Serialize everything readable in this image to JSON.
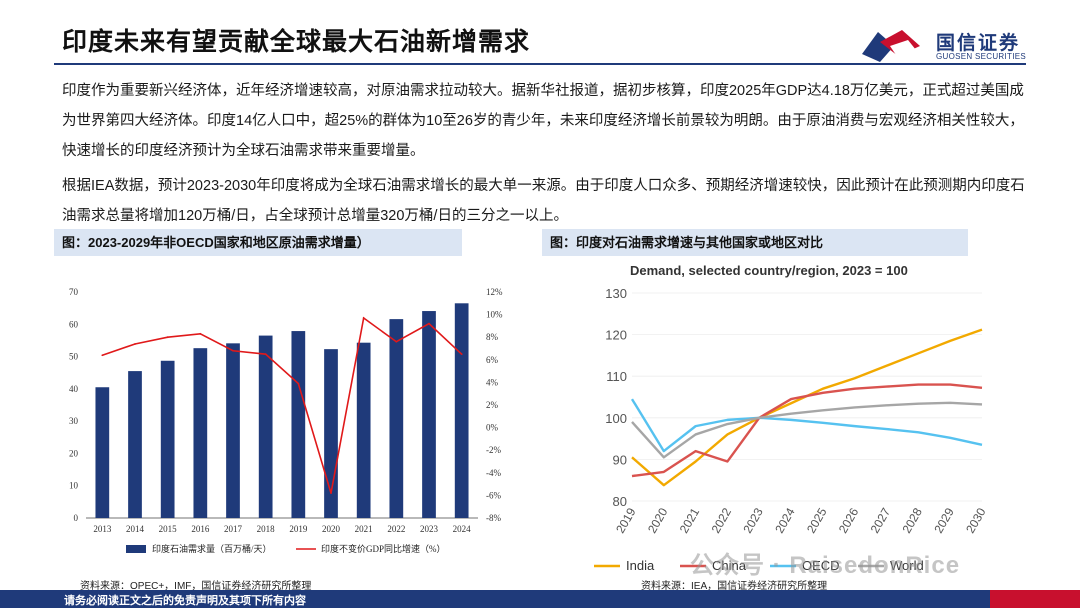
{
  "header": {
    "title": "印度未来有望贡献全球最大石油新增需求",
    "logo_cn": "国信证券",
    "logo_en": "GUOSEN SECURITIES"
  },
  "body": {
    "para1": "印度作为重要新兴经济体，近年经济增速较高，对原油需求拉动较大。据新华社报道，据初步核算，印度2025年GDP达4.18万亿美元，正式超过美国成为世界第四大经济体。印度14亿人口中，超25%的群体为10至26岁的青少年，未来印度经济增长前景较为明朗。由于原油消费与宏观经济相关性较大，快速增长的印度经济预计为全球石油需求带来重要增量。",
    "para2": "根据IEA数据，预计2023-2030年印度将成为全球石油需求增长的最大单一来源。由于印度人口众多、预期经济增速较快，因此预计在此预测期内印度石油需求总量将增加120万桶/日，占全球预计总增量320万桶/日的三分之一以上。"
  },
  "figure1": {
    "caption": "图：2023-2029年非OECD国家和地区原油需求增量）",
    "source": "资料来源：OPEC+，IMF，国信证券经济研究所整理"
  },
  "figure2": {
    "caption": "图：印度对石油需求增速与其他国家或地区对比",
    "source": "资料来源：IEA，国信证券经济研究所整理"
  },
  "footer": {
    "disclaimer": "请务必阅读正文之后的免责声明及其项下所有内容"
  },
  "watermark": "公众号 · RaisedonRice",
  "colors": {
    "bar": "#1f3a7a",
    "gdp_line": "#e0191a",
    "india": "#f2a900",
    "china": "#d9534f",
    "oecd": "#56c2f0",
    "world": "#a6a6a6"
  },
  "chart_data": [
    {
      "type": "bar",
      "categories": [
        "2013",
        "2014",
        "2015",
        "2016",
        "2017",
        "2018",
        "2019",
        "2020",
        "2021",
        "2022",
        "2023",
        "2024"
      ],
      "series": [
        {
          "name": "印度石油需求量（百万桶/天）",
          "type": "bar",
          "axis": "left",
          "values": [
            40.5,
            45.5,
            48.7,
            52.6,
            54.1,
            56.5,
            57.9,
            52.3,
            54.3,
            61.6,
            64.1,
            66.5
          ]
        },
        {
          "name": "印度不变价GDP同比增速（%）",
          "type": "line",
          "axis": "right",
          "values": [
            6.4,
            7.4,
            8.0,
            8.3,
            6.8,
            6.5,
            3.9,
            -5.8,
            9.7,
            7.6,
            9.2,
            6.5
          ]
        }
      ],
      "ylim_left": [
        0,
        70
      ],
      "yticks_left": [
        "0",
        "10",
        "20",
        "30",
        "40",
        "50",
        "60",
        "70"
      ],
      "ylim_right": [
        -8,
        12
      ],
      "yticks_right": [
        "-8%",
        "-6%",
        "-4%",
        "-2%",
        "0%",
        "2%",
        "4%",
        "6%",
        "8%",
        "10%",
        "12%"
      ],
      "legend": [
        "印度石油需求量（百万桶/天）",
        "印度不变价GDP同比增速（%）"
      ]
    },
    {
      "type": "line",
      "title": "Demand, selected country/region, 2023 = 100",
      "x": [
        "2019",
        "2020",
        "2021",
        "2022",
        "2023",
        "2024",
        "2025",
        "2026",
        "2027",
        "2028",
        "2029",
        "2030"
      ],
      "series": [
        {
          "name": "India",
          "values": [
            90.5,
            83.8,
            89.5,
            96.0,
            100.0,
            103.5,
            107.0,
            109.5,
            112.5,
            115.5,
            118.5,
            121.2
          ]
        },
        {
          "name": "China",
          "values": [
            86.0,
            87.0,
            92.0,
            89.5,
            100.0,
            104.5,
            106.0,
            107.0,
            107.5,
            108.0,
            108.0,
            107.2
          ]
        },
        {
          "name": "OECD",
          "values": [
            104.5,
            92.0,
            98.0,
            99.5,
            100.0,
            99.5,
            98.8,
            98.0,
            97.3,
            96.5,
            95.2,
            93.5
          ]
        },
        {
          "name": "World",
          "values": [
            99.0,
            90.5,
            96.0,
            98.5,
            100.0,
            101.0,
            101.8,
            102.5,
            103.0,
            103.4,
            103.6,
            103.2
          ]
        }
      ],
      "ylim": [
        80,
        130
      ],
      "yticks": [
        "80",
        "90",
        "100",
        "110",
        "120",
        "130"
      ],
      "legend": [
        "India",
        "China",
        "OECD",
        "World"
      ]
    }
  ]
}
